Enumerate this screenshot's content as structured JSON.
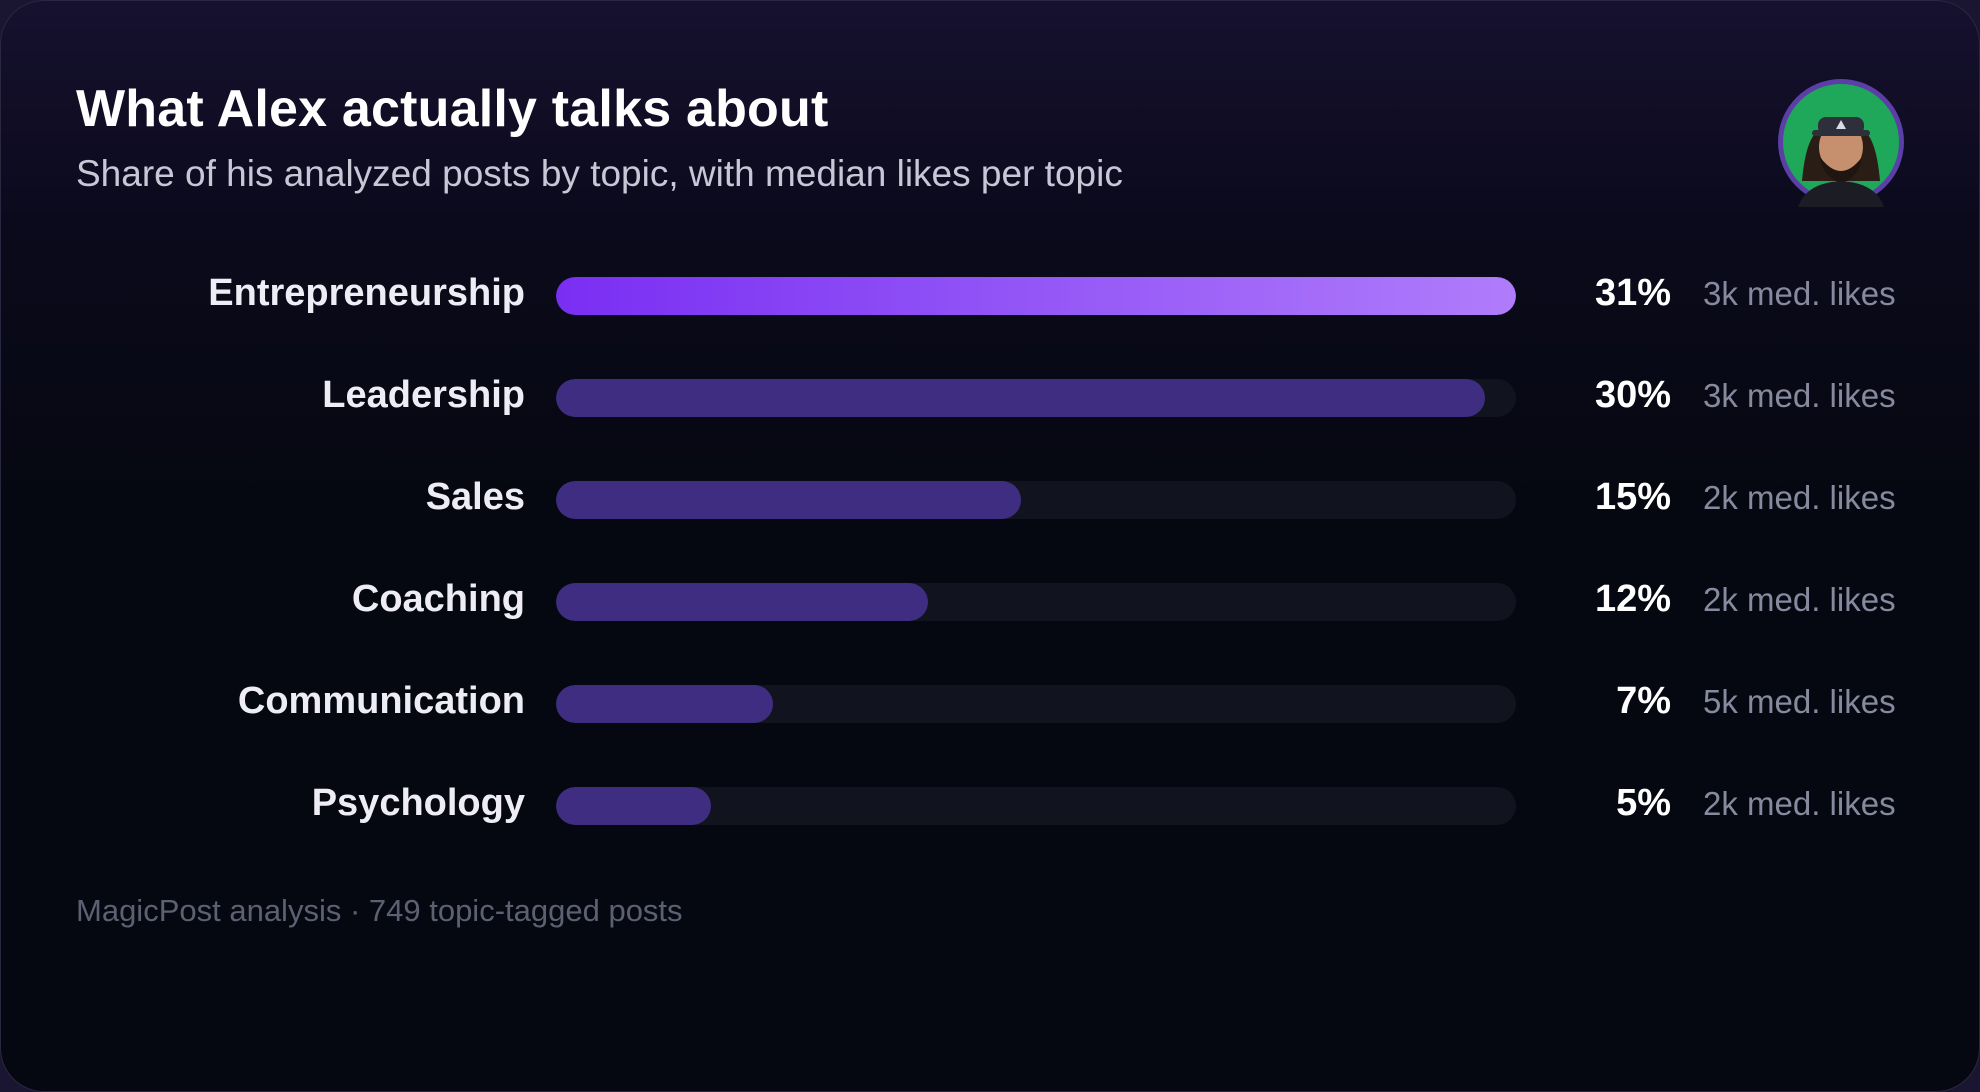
{
  "title": "What Alex actually talks about",
  "subtitle": "Share of his analyzed posts by topic, with median likes per topic",
  "footer": "MagicPost analysis · 749 topic-tagged posts",
  "colors": {
    "highlight_start": "#7a2ef3",
    "highlight_end": "#b07cfb",
    "bar": "#3f2d82",
    "track": "#11141f",
    "avatar_ring": "#5b3fa6",
    "avatar_bg": "#1fa85a"
  },
  "chart_data": {
    "type": "bar",
    "orientation": "horizontal",
    "categories": [
      "Entrepreneurship",
      "Leadership",
      "Sales",
      "Coaching",
      "Communication",
      "Psychology"
    ],
    "series": [
      {
        "values": [
          31,
          30,
          15,
          12,
          7,
          5
        ]
      }
    ],
    "value_labels": [
      "31%",
      "30%",
      "15%",
      "12%",
      "7%",
      "5%"
    ],
    "median_likes_labels": [
      "3k med. likes",
      "3k med. likes",
      "2k med. likes",
      "2k med. likes",
      "5k med. likes",
      "2k med. likes"
    ],
    "xlim": [
      0,
      31
    ],
    "highlighted_category": "Entrepreneurship",
    "grid": false,
    "legend": "none"
  }
}
